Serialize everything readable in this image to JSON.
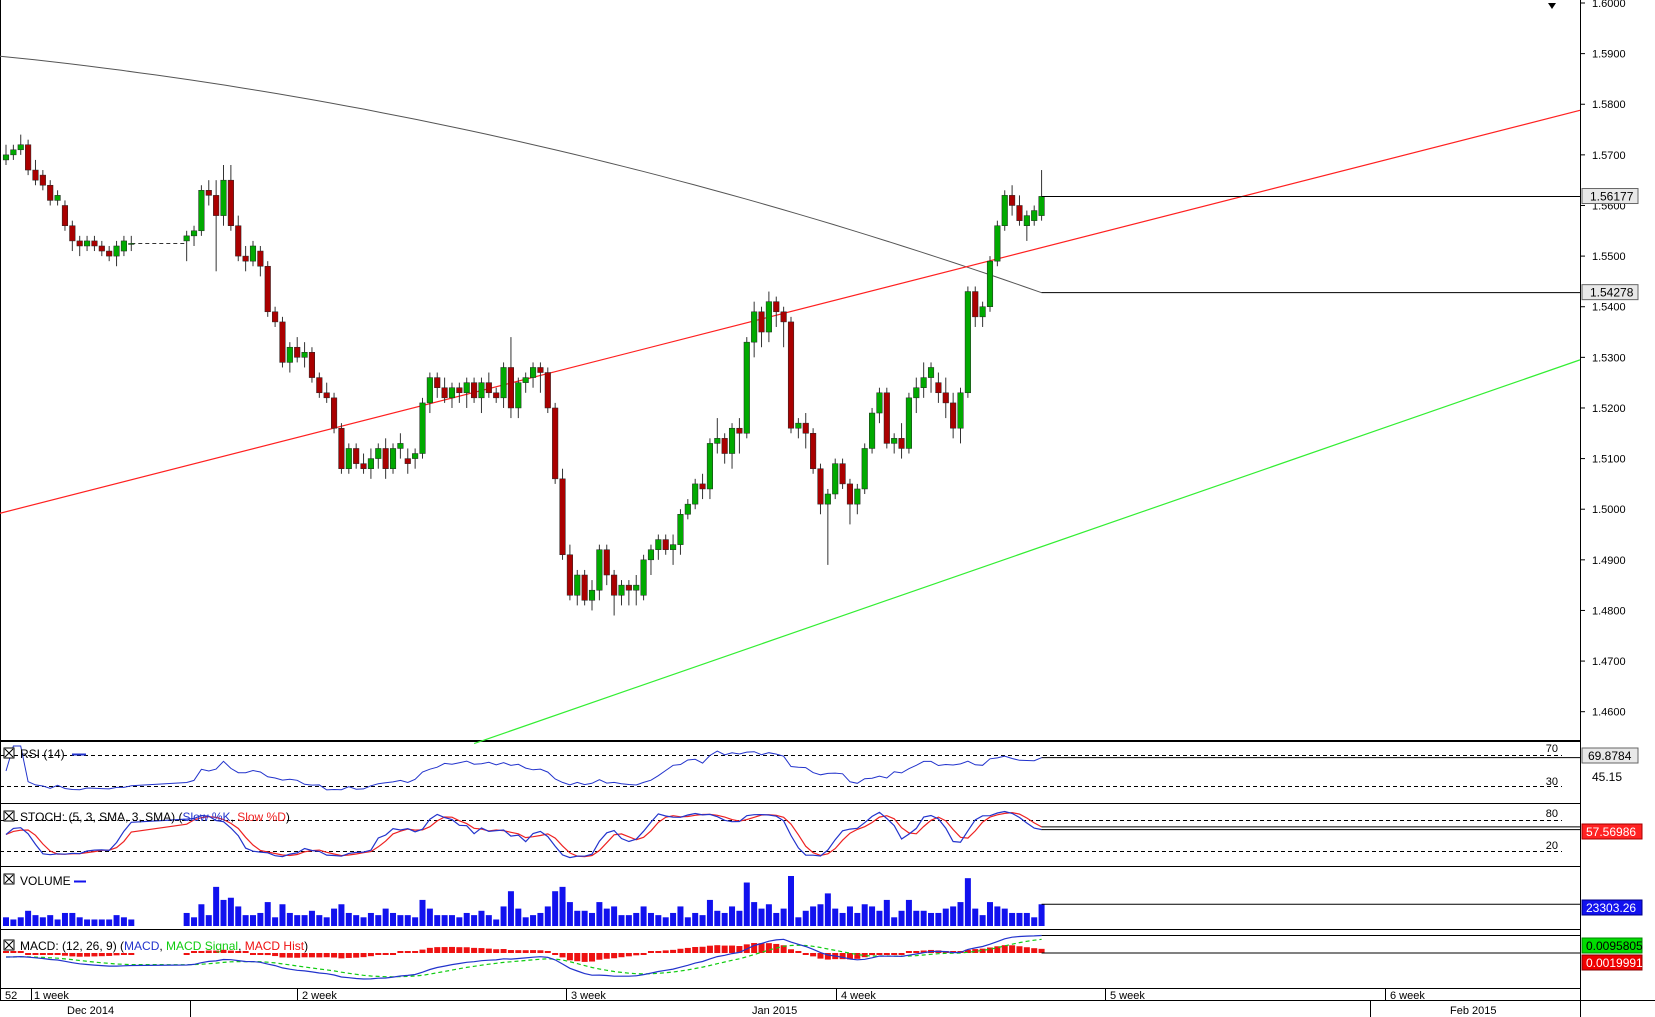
{
  "chart_data": {
    "type": "candlestick",
    "instrument_timeframe": "Daily",
    "price_axis": {
      "min": 1.455,
      "max": 1.6,
      "ticks": [
        "1.4600",
        "1.4700",
        "1.4800",
        "1.4900",
        "1.5000",
        "1.5100",
        "1.5200",
        "1.5300",
        "1.5400",
        "1.5500",
        "1.5600",
        "1.5700",
        "1.5800",
        "1.5900",
        "1.6000"
      ],
      "last_price_label": "1.56177",
      "ma_label": "1.54278"
    },
    "time_axis": {
      "week_labels": [
        "52",
        "1 week",
        "2 week",
        "3 week",
        "4 week",
        "5 week",
        "6 week"
      ],
      "month_labels": [
        "Dec 2014",
        "Jan 2015",
        "Feb 2015"
      ]
    },
    "candles": [
      [
        1.569,
        1.572,
        1.568,
        1.57
      ],
      [
        1.57,
        1.572,
        1.569,
        1.571
      ],
      [
        1.571,
        1.574,
        1.57,
        1.572
      ],
      [
        1.572,
        1.573,
        1.566,
        1.567
      ],
      [
        1.567,
        1.569,
        1.564,
        1.565
      ],
      [
        1.566,
        1.567,
        1.563,
        1.564
      ],
      [
        1.564,
        1.565,
        1.56,
        1.561
      ],
      [
        1.561,
        1.563,
        1.56,
        1.562
      ],
      [
        1.56,
        1.561,
        1.555,
        1.556
      ],
      [
        1.556,
        1.557,
        1.551,
        1.553
      ],
      [
        1.553,
        1.554,
        1.55,
        1.552
      ],
      [
        1.552,
        1.554,
        1.551,
        1.553
      ],
      [
        1.553,
        1.554,
        1.551,
        1.552
      ],
      [
        1.552,
        1.553,
        1.55,
        1.551
      ],
      [
        1.551,
        1.552,
        1.549,
        1.55
      ],
      [
        1.55,
        1.553,
        1.548,
        1.552
      ],
      [
        1.551,
        1.554,
        1.55,
        1.553
      ],
      [
        1.5525,
        1.554,
        1.551,
        1.5525
      ],
      [
        1.553,
        1.555,
        1.549,
        1.554
      ],
      [
        1.554,
        1.556,
        1.552,
        1.555
      ],
      [
        1.555,
        1.564,
        1.554,
        1.563
      ],
      [
        1.563,
        1.565,
        1.56,
        1.562
      ],
      [
        1.562,
        1.565,
        1.547,
        1.558
      ],
      [
        1.558,
        1.568,
        1.556,
        1.565
      ],
      [
        1.565,
        1.568,
        1.555,
        1.556
      ],
      [
        1.556,
        1.558,
        1.549,
        1.55
      ],
      [
        1.55,
        1.552,
        1.547,
        1.549
      ],
      [
        1.549,
        1.553,
        1.548,
        1.552
      ],
      [
        1.551,
        1.552,
        1.546,
        1.548
      ],
      [
        1.548,
        1.549,
        1.538,
        1.539
      ],
      [
        1.539,
        1.54,
        1.536,
        1.537
      ],
      [
        1.537,
        1.538,
        1.528,
        1.529
      ],
      [
        1.529,
        1.533,
        1.527,
        1.532
      ],
      [
        1.532,
        1.534,
        1.529,
        1.53
      ],
      [
        1.53,
        1.533,
        1.528,
        1.531
      ],
      [
        1.531,
        1.532,
        1.525,
        1.526
      ],
      [
        1.526,
        1.527,
        1.522,
        1.523
      ],
      [
        1.523,
        1.525,
        1.521,
        1.522
      ],
      [
        1.522,
        1.523,
        1.515,
        1.516
      ],
      [
        1.516,
        1.517,
        1.507,
        1.508
      ],
      [
        1.508,
        1.513,
        1.507,
        1.512
      ],
      [
        1.512,
        1.513,
        1.508,
        1.509
      ],
      [
        1.509,
        1.511,
        1.507,
        1.508
      ],
      [
        1.508,
        1.512,
        1.506,
        1.51
      ],
      [
        1.51,
        1.513,
        1.508,
        1.512
      ],
      [
        1.512,
        1.514,
        1.506,
        1.508
      ],
      [
        1.508,
        1.513,
        1.507,
        1.512
      ],
      [
        1.512,
        1.515,
        1.51,
        1.513
      ],
      [
        1.51,
        1.512,
        1.507,
        1.509
      ],
      [
        1.51,
        1.512,
        1.508,
        1.511
      ],
      [
        1.511,
        1.522,
        1.51,
        1.521
      ],
      [
        1.521,
        1.527,
        1.519,
        1.526
      ],
      [
        1.526,
        1.527,
        1.522,
        1.524
      ],
      [
        1.524,
        1.526,
        1.521,
        1.522
      ],
      [
        1.522,
        1.525,
        1.52,
        1.524
      ],
      [
        1.524,
        1.525,
        1.521,
        1.523
      ],
      [
        1.523,
        1.526,
        1.52,
        1.525
      ],
      [
        1.525,
        1.526,
        1.521,
        1.522
      ],
      [
        1.522,
        1.526,
        1.519,
        1.525
      ],
      [
        1.525,
        1.527,
        1.522,
        1.523
      ],
      [
        1.523,
        1.524,
        1.521,
        1.522
      ],
      [
        1.522,
        1.529,
        1.52,
        1.528
      ],
      [
        1.528,
        1.534,
        1.518,
        1.52
      ],
      [
        1.52,
        1.526,
        1.518,
        1.525
      ],
      [
        1.525,
        1.527,
        1.523,
        1.526
      ],
      [
        1.526,
        1.529,
        1.524,
        1.528
      ],
      [
        1.528,
        1.529,
        1.523,
        1.527
      ],
      [
        1.527,
        1.528,
        1.519,
        1.52
      ],
      [
        1.52,
        1.521,
        1.505,
        1.506
      ],
      [
        1.506,
        1.508,
        1.49,
        1.491
      ],
      [
        1.491,
        1.493,
        1.482,
        1.483
      ],
      [
        1.483,
        1.488,
        1.481,
        1.487
      ],
      [
        1.487,
        1.488,
        1.481,
        1.482
      ],
      [
        1.482,
        1.486,
        1.48,
        1.484
      ],
      [
        1.484,
        1.493,
        1.482,
        1.492
      ],
      [
        1.492,
        1.493,
        1.485,
        1.487
      ],
      [
        1.487,
        1.488,
        1.479,
        1.483
      ],
      [
        1.483,
        1.486,
        1.481,
        1.485
      ],
      [
        1.485,
        1.486,
        1.481,
        1.484
      ],
      [
        1.484,
        1.487,
        1.481,
        1.485
      ],
      [
        1.483,
        1.491,
        1.482,
        1.49
      ],
      [
        1.49,
        1.493,
        1.487,
        1.492
      ],
      [
        1.492,
        1.495,
        1.49,
        1.494
      ],
      [
        1.494,
        1.495,
        1.491,
        1.492
      ],
      [
        1.492,
        1.495,
        1.489,
        1.493
      ],
      [
        1.493,
        1.5,
        1.491,
        1.499
      ],
      [
        1.499,
        1.502,
        1.498,
        1.501
      ],
      [
        1.501,
        1.506,
        1.5,
        1.505
      ],
      [
        1.505,
        1.507,
        1.502,
        1.504
      ],
      [
        1.504,
        1.514,
        1.502,
        1.513
      ],
      [
        1.513,
        1.518,
        1.511,
        1.514
      ],
      [
        1.514,
        1.515,
        1.509,
        1.511
      ],
      [
        1.511,
        1.517,
        1.508,
        1.516
      ],
      [
        1.516,
        1.518,
        1.511,
        1.515
      ],
      [
        1.515,
        1.534,
        1.514,
        1.533
      ],
      [
        1.533,
        1.541,
        1.53,
        1.539
      ],
      [
        1.539,
        1.54,
        1.532,
        1.535
      ],
      [
        1.535,
        1.543,
        1.533,
        1.541
      ],
      [
        1.541,
        1.542,
        1.536,
        1.539
      ],
      [
        1.539,
        1.54,
        1.532,
        1.537
      ],
      [
        1.537,
        1.538,
        1.515,
        1.516
      ],
      [
        1.516,
        1.518,
        1.514,
        1.517
      ],
      [
        1.517,
        1.519,
        1.512,
        1.515
      ],
      [
        1.515,
        1.516,
        1.507,
        1.508
      ],
      [
        1.508,
        1.509,
        1.499,
        1.501
      ],
      [
        1.501,
        1.504,
        1.489,
        1.503
      ],
      [
        1.503,
        1.51,
        1.502,
        1.509
      ],
      [
        1.509,
        1.51,
        1.504,
        1.505
      ],
      [
        1.505,
        1.506,
        1.497,
        1.501
      ],
      [
        1.501,
        1.505,
        1.499,
        1.504
      ],
      [
        1.504,
        1.513,
        1.503,
        1.512
      ],
      [
        1.512,
        1.52,
        1.511,
        1.519
      ],
      [
        1.519,
        1.524,
        1.517,
        1.523
      ],
      [
        1.523,
        1.524,
        1.512,
        1.513
      ],
      [
        1.513,
        1.515,
        1.511,
        1.514
      ],
      [
        1.514,
        1.517,
        1.51,
        1.512
      ],
      [
        1.512,
        1.523,
        1.511,
        1.522
      ],
      [
        1.522,
        1.526,
        1.519,
        1.524
      ],
      [
        1.524,
        1.529,
        1.522,
        1.526
      ],
      [
        1.526,
        1.529,
        1.523,
        1.528
      ],
      [
        1.525,
        1.527,
        1.521,
        1.523
      ],
      [
        1.523,
        1.526,
        1.518,
        1.521
      ],
      [
        1.521,
        1.523,
        1.514,
        1.516
      ],
      [
        1.516,
        1.524,
        1.513,
        1.523
      ],
      [
        1.523,
        1.544,
        1.522,
        1.543
      ],
      [
        1.543,
        1.544,
        1.536,
        1.538
      ],
      [
        1.538,
        1.541,
        1.536,
        1.54
      ],
      [
        1.54,
        1.55,
        1.539,
        1.549
      ],
      [
        1.549,
        1.557,
        1.548,
        1.556
      ],
      [
        1.556,
        1.563,
        1.555,
        1.562
      ],
      [
        1.562,
        1.564,
        1.558,
        1.56
      ],
      [
        1.56,
        1.562,
        1.556,
        1.557
      ],
      [
        1.556,
        1.559,
        1.553,
        1.558
      ],
      [
        1.557,
        1.56,
        1.556,
        1.559
      ],
      [
        1.558,
        1.567,
        1.557,
        1.5618
      ]
    ],
    "candle_gaps": [
      [
        17,
        18
      ]
    ],
    "moving_average": {
      "from": 1.5895,
      "to": 1.54278
    },
    "resistance_line": {
      "start": 1.4992,
      "end": 1.5788
    },
    "support_line": {
      "start_candle": 57,
      "start_price": 1.4537,
      "end": 1.5295
    },
    "rsi": {
      "label": "RSI (14)",
      "value_label": "69.8784",
      "mid_label": "45.15",
      "level_labels": [
        "70",
        "30"
      ]
    },
    "stoch": {
      "label_prefix": "STOCH: (5, 3, SMA, 3, SMA) (",
      "k_label": "Slow %K",
      "d_label": "Slow %D",
      "value_label": "57.56986",
      "level_labels": [
        "80",
        "20"
      ]
    },
    "volume": {
      "label": "VOLUME",
      "value_label": "23303.26"
    },
    "macd": {
      "label_prefix": "MACD: (12, 26, 9) (",
      "line_label": "MACD",
      "signal_label": "MACD Signal",
      "hist_label": "MACD Hist",
      "macd_value_label": "0.0095805",
      "hist_value_label": "0.0019991"
    }
  },
  "colors": {
    "bull": "#00aa00",
    "bear": "#aa0000",
    "wick": "#333333",
    "ma": "#555555",
    "resistance": "#ff2020",
    "support": "#33ee33",
    "rsi": "#2233cc",
    "stoch_k": "#2233cc",
    "stoch_d": "#ee2222",
    "volume": "#1111ee",
    "macd": "#2233cc",
    "macd_signal": "#11cc11",
    "macd_hist": "#ee1111",
    "macd_value_bg": "#00dd00",
    "hist_value_bg": "#ee0000"
  }
}
